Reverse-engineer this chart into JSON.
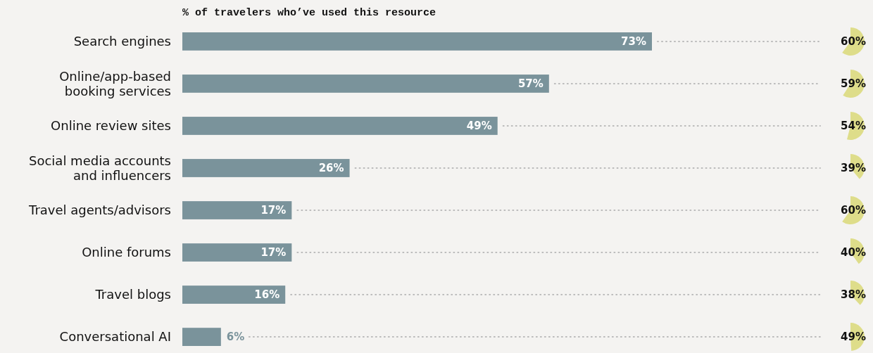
{
  "chart_data": [
    {
      "type": "bar",
      "orientation": "horizontal",
      "title": "% of travelers who’ve used this resource",
      "categories": [
        "Search engines",
        "Online/app-based booking services",
        "Online review sites",
        "Social media accounts and influencers",
        "Travel agents/advisors",
        "Online forums",
        "Travel blogs",
        "Conversational AI"
      ],
      "values": [
        73,
        57,
        49,
        26,
        17,
        17,
        16,
        6
      ],
      "value_labels": [
        "73%",
        "57%",
        "49%",
        "26%",
        "17%",
        "17%",
        "16%",
        "6%"
      ],
      "color": "#7a939b"
    },
    {
      "type": "other",
      "values": [
        60,
        59,
        54,
        39,
        60,
        40,
        38,
        49
      ],
      "value_labels": [
        "60%",
        "59%",
        "54%",
        "39%",
        "60%",
        "40%",
        "38%",
        "49%"
      ],
      "color": "#dedd8a"
    }
  ]
}
